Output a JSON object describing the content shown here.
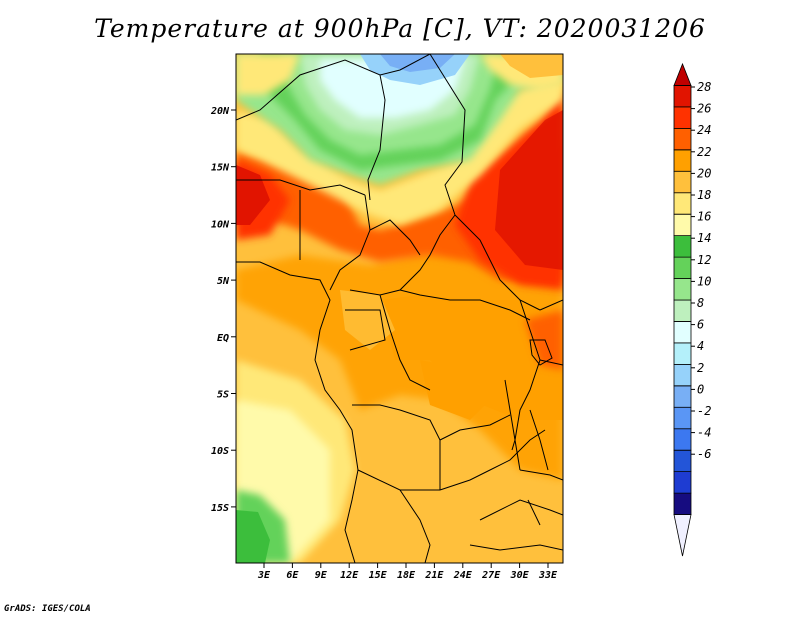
{
  "title": "Temperature at 900hPa [C], VT: 2020031206",
  "footer": "GrADS: IGES/COLA",
  "map": {
    "lon_range": [
      0,
      35
    ],
    "lat_range": [
      -20,
      25
    ],
    "lon_ticks": [
      "3E",
      "6E",
      "9E",
      "12E",
      "15E",
      "18E",
      "21E",
      "24E",
      "27E",
      "30E",
      "33E"
    ],
    "lat_ticks": [
      "20N",
      "15N",
      "10N",
      "5N",
      "EQ",
      "5S",
      "10S",
      "15S"
    ]
  },
  "colorbar": {
    "labels": [
      "28",
      "26",
      "24",
      "22",
      "20",
      "18",
      "16",
      "14",
      "12",
      "10",
      "8",
      "6",
      "4",
      "2",
      "0",
      "-2",
      "-4",
      "-6"
    ],
    "colors": [
      "#f0f0ff",
      "#160c80",
      "#1e3cd2",
      "#2355d8",
      "#3c78f0",
      "#5a96f5",
      "#78aff5",
      "#96d2fa",
      "#b4f0fa",
      "#e1ffff",
      "#bef0be",
      "#96e68c",
      "#64d25a",
      "#3cbe3c",
      "#fffaaa",
      "#ffe878",
      "#ffc03c",
      "#ffa000",
      "#ff6000",
      "#ff3200",
      "#e11400",
      "#c00000"
    ]
  }
}
